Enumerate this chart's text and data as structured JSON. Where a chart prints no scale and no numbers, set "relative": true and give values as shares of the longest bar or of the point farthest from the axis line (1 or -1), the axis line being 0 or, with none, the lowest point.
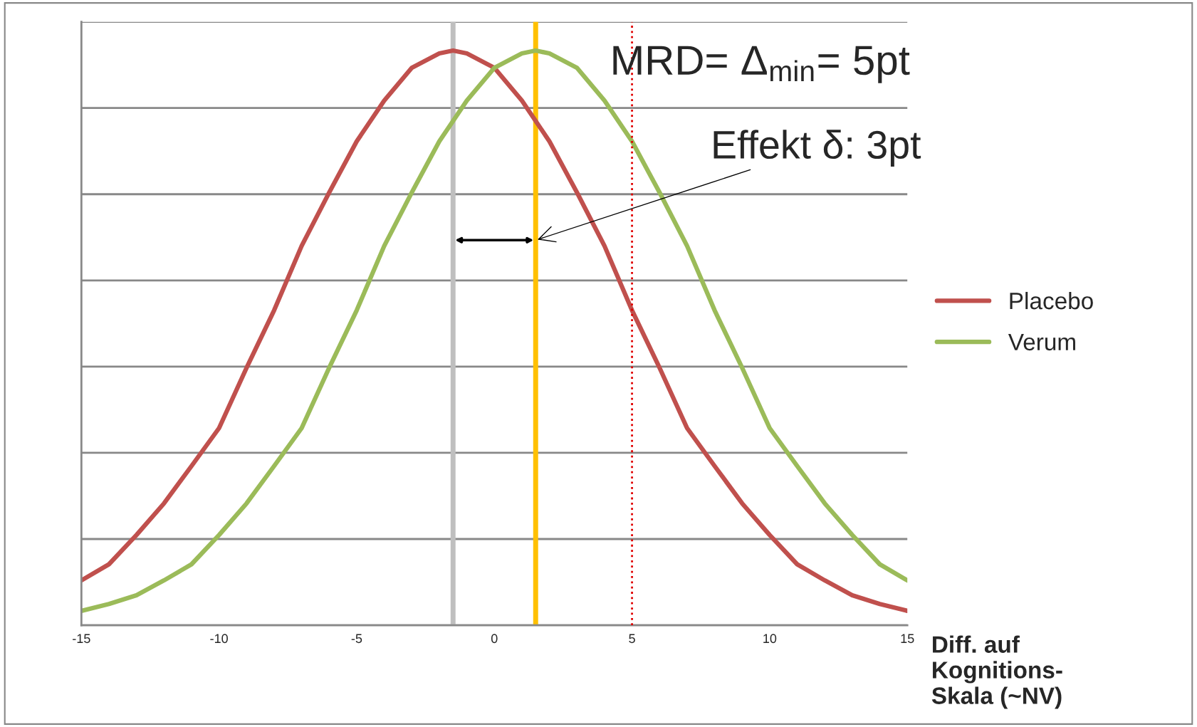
{
  "chart_data": {
    "type": "line",
    "relative": true,
    "xlabel": "Diff. auf\nKognitions-\nSkala (~NV)",
    "xlim": [
      -15,
      15
    ],
    "xticks": [
      -15,
      -10,
      -5,
      0,
      5,
      10,
      15
    ],
    "grid": "y",
    "legend": "right",
    "marker": "none",
    "line_style": "solid",
    "series": [
      {
        "name": "Placebo",
        "color": "#c0504d",
        "x": [
          -15,
          -14,
          -13,
          -12,
          -11,
          -10,
          -9,
          -8,
          -7,
          -6,
          -5,
          -4,
          -3,
          -2,
          -1.5,
          -1,
          0,
          1,
          2,
          3,
          4,
          5,
          6,
          7,
          8,
          9,
          10,
          11,
          12,
          13,
          14,
          15
        ],
        "values": [
          0.078,
          0.106,
          0.157,
          0.212,
          0.277,
          0.343,
          0.448,
          0.548,
          0.66,
          0.753,
          0.842,
          0.913,
          0.97,
          0.995,
          1,
          0.995,
          0.97,
          0.913,
          0.842,
          0.753,
          0.66,
          0.548,
          0.448,
          0.343,
          0.277,
          0.212,
          0.157,
          0.106,
          0.078,
          0.052,
          0.037,
          0.025
        ]
      },
      {
        "name": "Verum",
        "color": "#9bbb59",
        "x": [
          -15,
          -14,
          -13,
          -12,
          -11,
          -10,
          -9,
          -8,
          -7,
          -6,
          -5,
          -4,
          -3,
          -2,
          -1,
          0,
          1,
          1.5,
          2,
          3,
          4,
          5,
          6,
          7,
          8,
          9,
          10,
          11,
          12,
          13,
          14,
          15
        ],
        "values": [
          0.025,
          0.037,
          0.052,
          0.078,
          0.106,
          0.157,
          0.212,
          0.277,
          0.343,
          0.448,
          0.548,
          0.66,
          0.753,
          0.842,
          0.913,
          0.97,
          0.995,
          1,
          0.995,
          0.97,
          0.913,
          0.842,
          0.753,
          0.66,
          0.548,
          0.448,
          0.343,
          0.277,
          0.212,
          0.157,
          0.106,
          0.078
        ]
      }
    ],
    "ref_lines": [
      {
        "axis": "x",
        "value": -1.5,
        "color": "#bfbfbf",
        "line_style": "solid"
      },
      {
        "axis": "x",
        "value": 1.5,
        "color": "#ffc000",
        "line_style": "solid"
      },
      {
        "axis": "x",
        "value": 5,
        "color": "#e00000",
        "line_style": "dotted"
      }
    ],
    "annotations": [
      "MRD= Δ$_{min}$= 5pt",
      {
        "text": "Effekt δ: 3pt",
        "x": 1.5,
        "y": 0.67
      }
    ]
  }
}
